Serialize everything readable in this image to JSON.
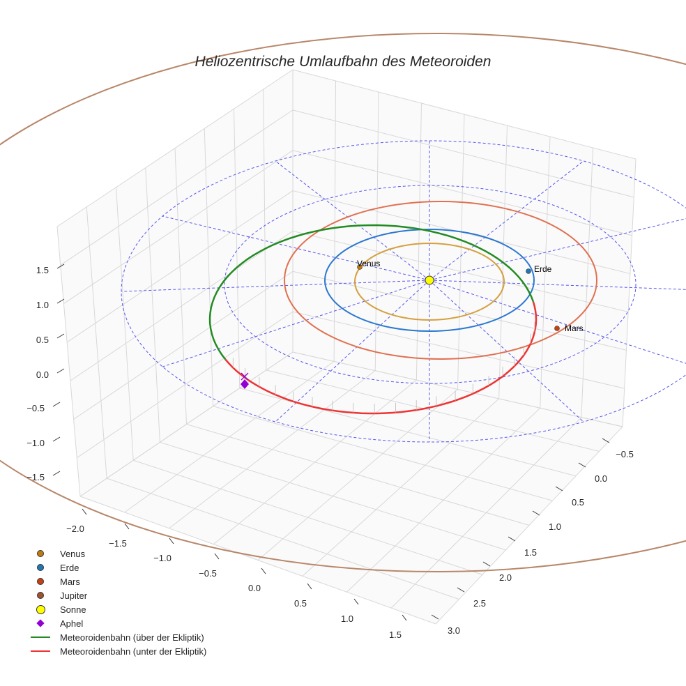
{
  "chart_data": {
    "type": "scatter",
    "projection": "3d",
    "title": "Heliozentrische Umlaufbahn des Meteoroiden",
    "x_ticks": [
      "−2.0",
      "−1.5",
      "−1.0",
      "−0.5",
      "0.0",
      "0.5",
      "1.0",
      "1.5"
    ],
    "y_ticks": [
      "−0.5",
      "0.0",
      "0.5",
      "1.0",
      "1.5",
      "2.0",
      "2.5",
      "3.0"
    ],
    "z_ticks": [
      "1.5",
      "1.0",
      "0.5",
      "0.0",
      "−0.5",
      "−1.0",
      "−1.5"
    ],
    "xlim": [
      -2.2,
      1.7
    ],
    "ylim": [
      -0.7,
      3.1
    ],
    "zlim": [
      -1.7,
      1.9
    ],
    "grid": true,
    "legend_position": "bottom-left",
    "planets": [
      {
        "name": "Venus",
        "orbit_radius_au": 0.72,
        "color": "#d4a040"
      },
      {
        "name": "Erde",
        "orbit_radius_au": 1.0,
        "color": "#2a78d0"
      },
      {
        "name": "Mars",
        "orbit_radius_au": 1.52,
        "color": "#e07050"
      },
      {
        "name": "Jupiter",
        "orbit_radius_au": 5.2,
        "color": "#b8876a"
      }
    ],
    "point_labels": [
      "Venus",
      "Erde",
      "Mars"
    ],
    "legend": [
      {
        "label": "Venus",
        "marker": "circle",
        "color": "#c07a10"
      },
      {
        "label": "Erde",
        "marker": "circle",
        "color": "#1f77b4"
      },
      {
        "label": "Mars",
        "marker": "circle",
        "color": "#c8400f"
      },
      {
        "label": "Jupiter",
        "marker": "circle",
        "color": "#a0522d"
      },
      {
        "label": "Sonne",
        "marker": "circle-large",
        "color": "#ffff00"
      },
      {
        "label": "Aphel",
        "marker": "diamond",
        "color": "#9400d3"
      },
      {
        "label": "Meteoroidenbahn (über der Ekliptik)",
        "marker": "line",
        "color": "#228b22"
      },
      {
        "label": "Meteoroidenbahn (unter der Ekliptik)",
        "marker": "line",
        "color": "#ee3333"
      }
    ]
  }
}
